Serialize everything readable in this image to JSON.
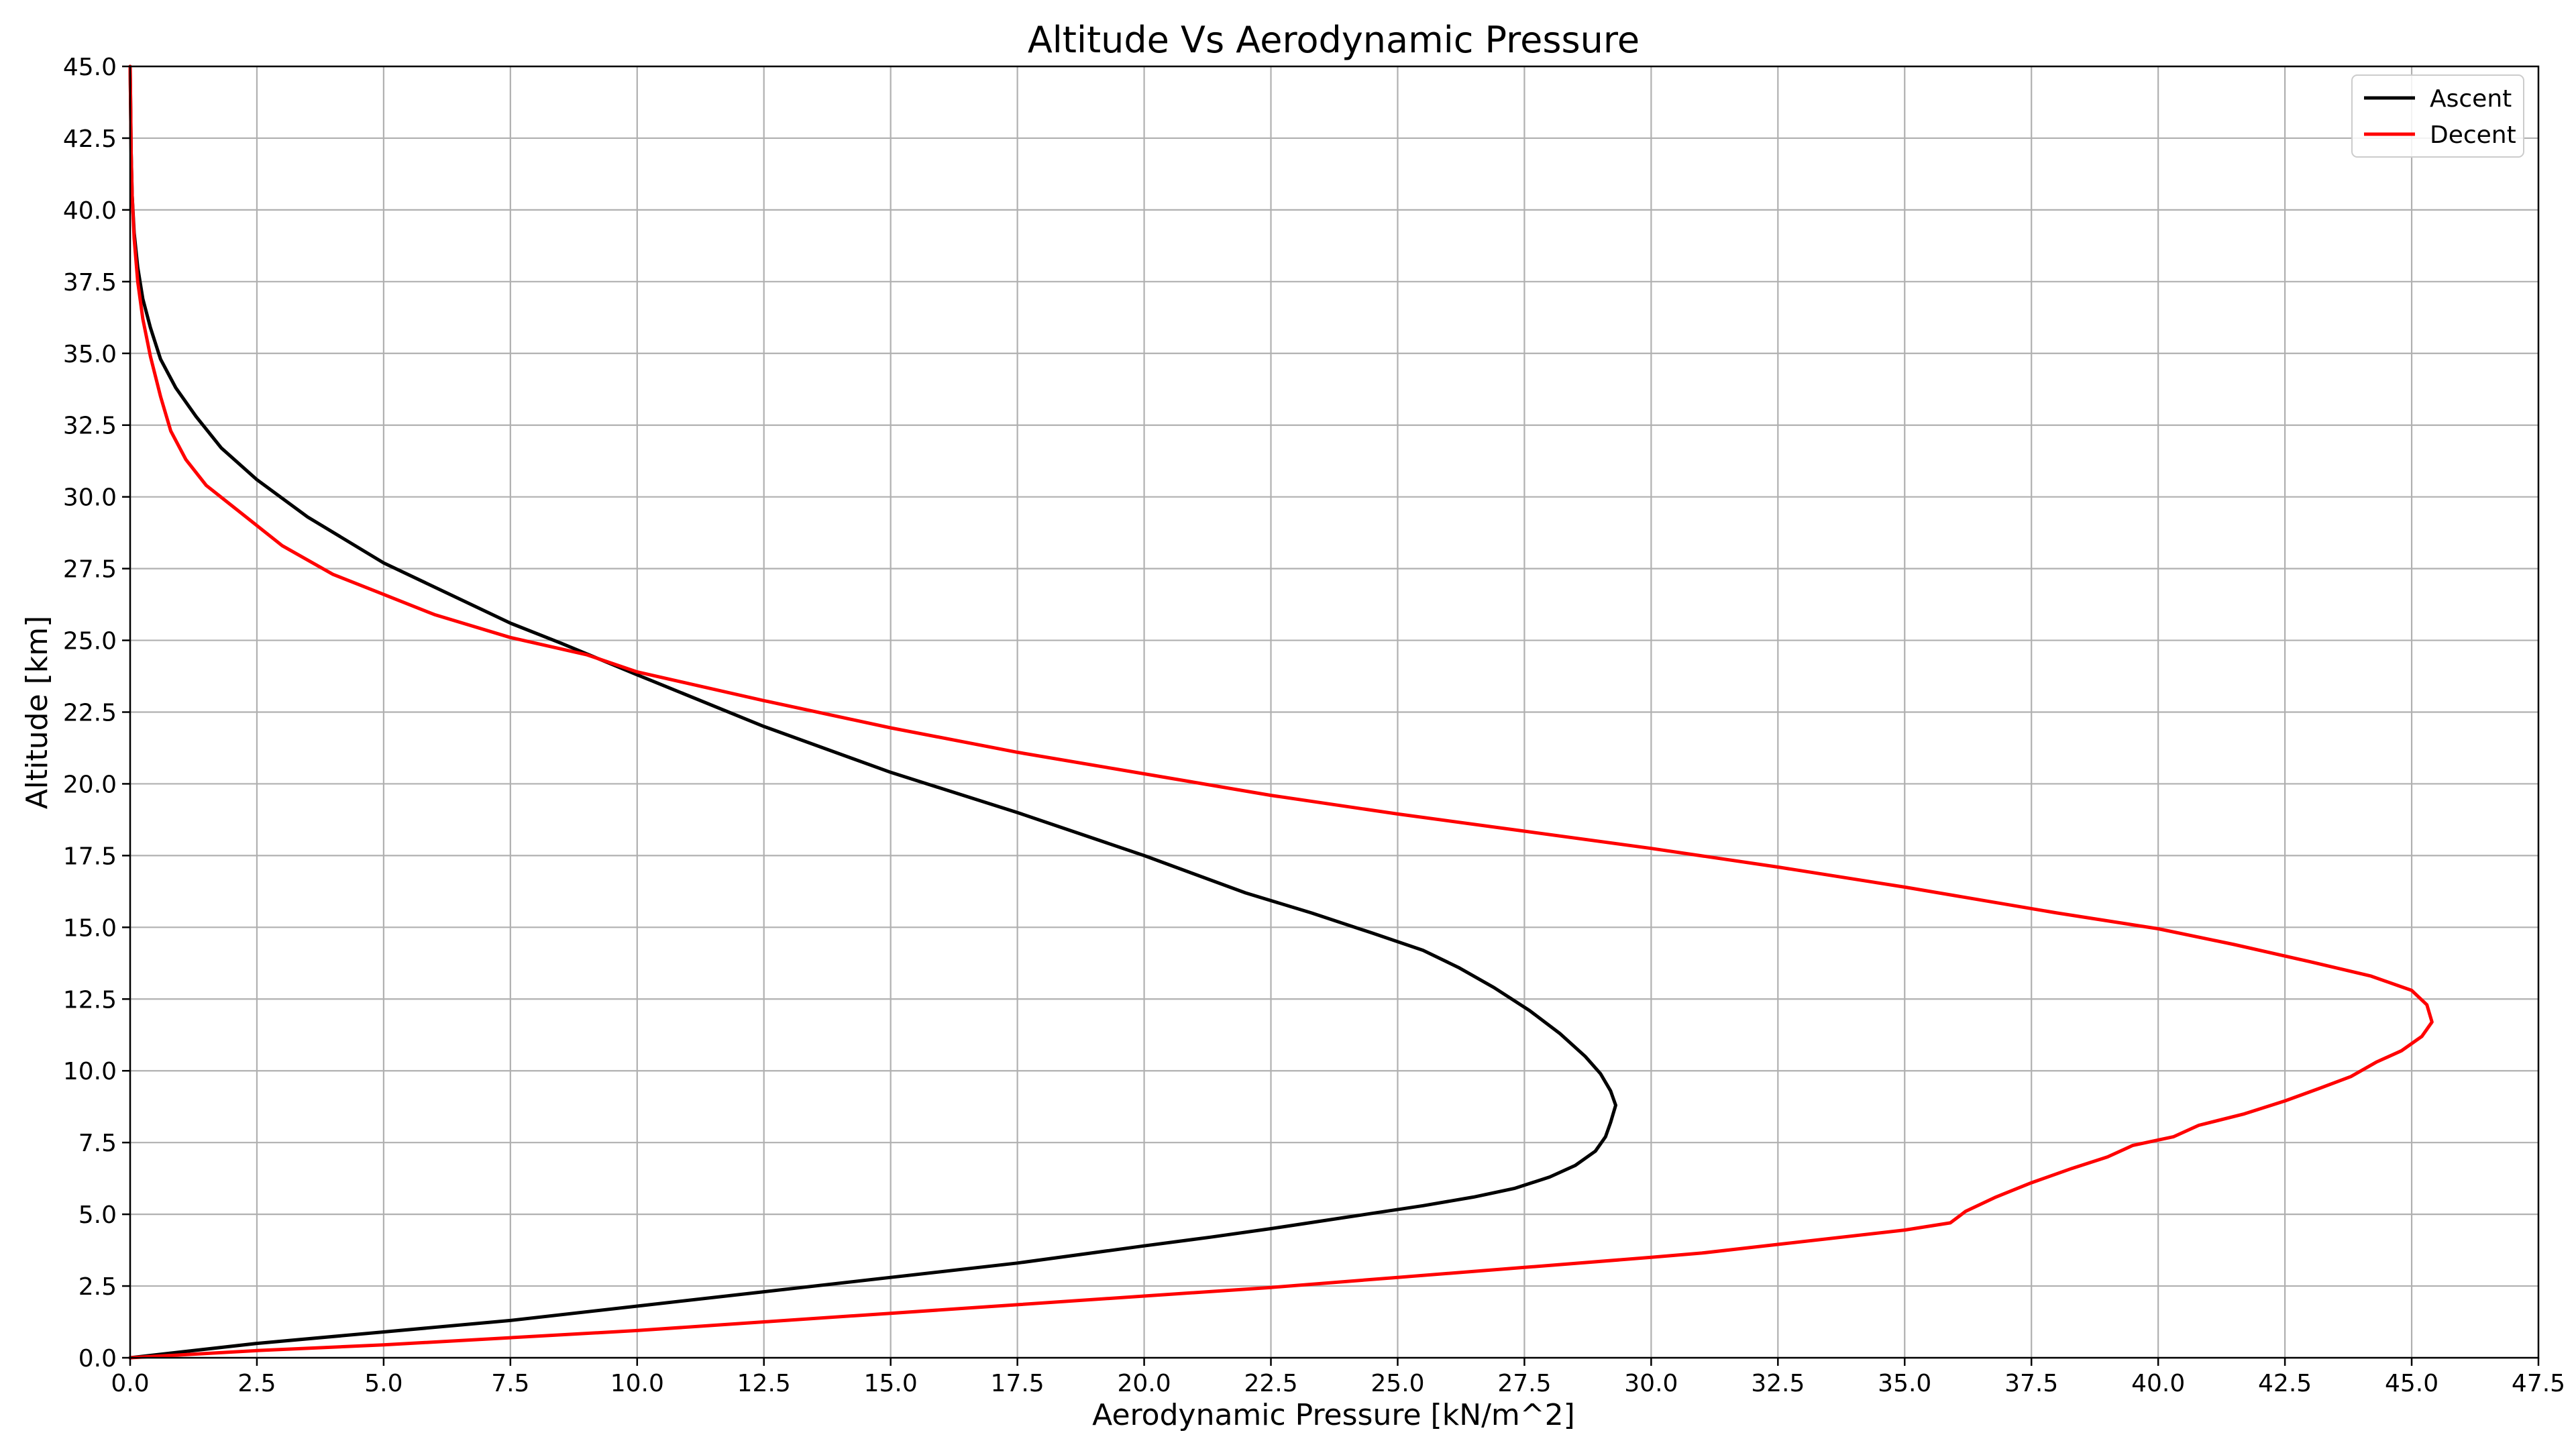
{
  "chart_data": {
    "type": "line",
    "title": "Altitude Vs Aerodynamic Pressure",
    "xlabel": "Aerodynamic Pressure [kN/m^2]",
    "ylabel": "Altitude [km]",
    "xlim": [
      0,
      47.5
    ],
    "ylim": [
      0,
      45
    ],
    "x_ticks": [
      "0.0",
      "2.5",
      "5.0",
      "7.5",
      "10.0",
      "12.5",
      "15.0",
      "17.5",
      "20.0",
      "22.5",
      "25.0",
      "27.5",
      "30.0",
      "32.5",
      "35.0",
      "37.5",
      "40.0",
      "42.5",
      "45.0",
      "47.5"
    ],
    "y_ticks": [
      "0.0",
      "2.5",
      "5.0",
      "7.5",
      "10.0",
      "12.5",
      "15.0",
      "17.5",
      "20.0",
      "22.5",
      "25.0",
      "27.5",
      "30.0",
      "32.5",
      "35.0",
      "37.5",
      "40.0",
      "42.5",
      "45.0"
    ],
    "grid": true,
    "legend_position": "top-right",
    "series": [
      {
        "name": "Ascent",
        "color": "#000000",
        "points": [
          [
            0.0,
            0.0
          ],
          [
            1.0,
            0.2
          ],
          [
            2.5,
            0.5
          ],
          [
            5.0,
            0.9
          ],
          [
            7.5,
            1.3
          ],
          [
            10.0,
            1.8
          ],
          [
            12.5,
            2.3
          ],
          [
            15.0,
            2.8
          ],
          [
            17.5,
            3.3
          ],
          [
            20.0,
            3.9
          ],
          [
            21.3,
            4.2
          ],
          [
            22.5,
            4.5
          ],
          [
            24.0,
            4.9
          ],
          [
            25.5,
            5.3
          ],
          [
            26.5,
            5.6
          ],
          [
            27.3,
            5.9
          ],
          [
            28.0,
            6.3
          ],
          [
            28.5,
            6.7
          ],
          [
            28.9,
            7.2
          ],
          [
            29.1,
            7.7
          ],
          [
            29.2,
            8.2
          ],
          [
            29.3,
            8.8
          ],
          [
            29.2,
            9.3
          ],
          [
            29.0,
            9.9
          ],
          [
            28.7,
            10.5
          ],
          [
            28.2,
            11.3
          ],
          [
            27.6,
            12.1
          ],
          [
            26.9,
            12.9
          ],
          [
            26.2,
            13.6
          ],
          [
            25.5,
            14.2
          ],
          [
            24.5,
            14.8
          ],
          [
            23.3,
            15.5
          ],
          [
            22.0,
            16.2
          ],
          [
            20.0,
            17.5
          ],
          [
            17.5,
            19.0
          ],
          [
            15.0,
            20.4
          ],
          [
            12.5,
            22.0
          ],
          [
            10.0,
            23.8
          ],
          [
            8.5,
            24.9
          ],
          [
            7.5,
            25.6
          ],
          [
            5.0,
            27.7
          ],
          [
            3.5,
            29.3
          ],
          [
            2.5,
            30.6
          ],
          [
            1.8,
            31.7
          ],
          [
            1.3,
            32.8
          ],
          [
            0.9,
            33.8
          ],
          [
            0.6,
            34.8
          ],
          [
            0.4,
            35.9
          ],
          [
            0.25,
            36.9
          ],
          [
            0.15,
            38.0
          ],
          [
            0.08,
            39.2
          ],
          [
            0.04,
            40.5
          ],
          [
            0.02,
            42.0
          ],
          [
            0.01,
            43.5
          ],
          [
            0.0,
            45.0
          ]
        ]
      },
      {
        "name": "Decent",
        "color": "#ff0000",
        "points": [
          [
            0.0,
            0.0
          ],
          [
            2.5,
            0.25
          ],
          [
            5.0,
            0.45
          ],
          [
            7.5,
            0.7
          ],
          [
            10.0,
            0.95
          ],
          [
            12.5,
            1.25
          ],
          [
            15.0,
            1.55
          ],
          [
            17.5,
            1.85
          ],
          [
            20.0,
            2.15
          ],
          [
            22.5,
            2.45
          ],
          [
            25.0,
            2.8
          ],
          [
            27.5,
            3.15
          ],
          [
            30.0,
            3.5
          ],
          [
            31.0,
            3.65
          ],
          [
            32.5,
            3.95
          ],
          [
            35.0,
            4.45
          ],
          [
            35.9,
            4.7
          ],
          [
            36.2,
            5.1
          ],
          [
            36.8,
            5.6
          ],
          [
            37.5,
            6.1
          ],
          [
            38.3,
            6.6
          ],
          [
            39.0,
            7.0
          ],
          [
            39.5,
            7.4
          ],
          [
            40.3,
            7.7
          ],
          [
            40.8,
            8.1
          ],
          [
            41.7,
            8.5
          ],
          [
            42.5,
            8.95
          ],
          [
            43.2,
            9.4
          ],
          [
            43.8,
            9.8
          ],
          [
            44.3,
            10.3
          ],
          [
            44.8,
            10.7
          ],
          [
            45.2,
            11.2
          ],
          [
            45.4,
            11.7
          ],
          [
            45.3,
            12.3
          ],
          [
            45.0,
            12.8
          ],
          [
            44.2,
            13.3
          ],
          [
            43.0,
            13.8
          ],
          [
            41.5,
            14.4
          ],
          [
            40.0,
            14.95
          ],
          [
            38.0,
            15.5
          ],
          [
            35.0,
            16.4
          ],
          [
            32.5,
            17.1
          ],
          [
            30.0,
            17.75
          ],
          [
            27.5,
            18.35
          ],
          [
            25.0,
            18.95
          ],
          [
            22.5,
            19.6
          ],
          [
            20.0,
            20.35
          ],
          [
            17.5,
            21.1
          ],
          [
            15.0,
            21.95
          ],
          [
            12.5,
            22.9
          ],
          [
            10.0,
            23.9
          ],
          [
            9.0,
            24.5
          ],
          [
            7.5,
            25.1
          ],
          [
            6.0,
            25.9
          ],
          [
            5.0,
            26.6
          ],
          [
            4.0,
            27.3
          ],
          [
            3.0,
            28.3
          ],
          [
            2.5,
            29.0
          ],
          [
            2.0,
            29.7
          ],
          [
            1.5,
            30.4
          ],
          [
            1.1,
            31.3
          ],
          [
            0.8,
            32.3
          ],
          [
            0.6,
            33.5
          ],
          [
            0.4,
            34.9
          ],
          [
            0.25,
            36.2
          ],
          [
            0.15,
            37.5
          ],
          [
            0.08,
            39.0
          ],
          [
            0.04,
            40.5
          ],
          [
            0.02,
            42.0
          ],
          [
            0.01,
            43.5
          ],
          [
            0.0,
            45.0
          ]
        ]
      }
    ]
  }
}
